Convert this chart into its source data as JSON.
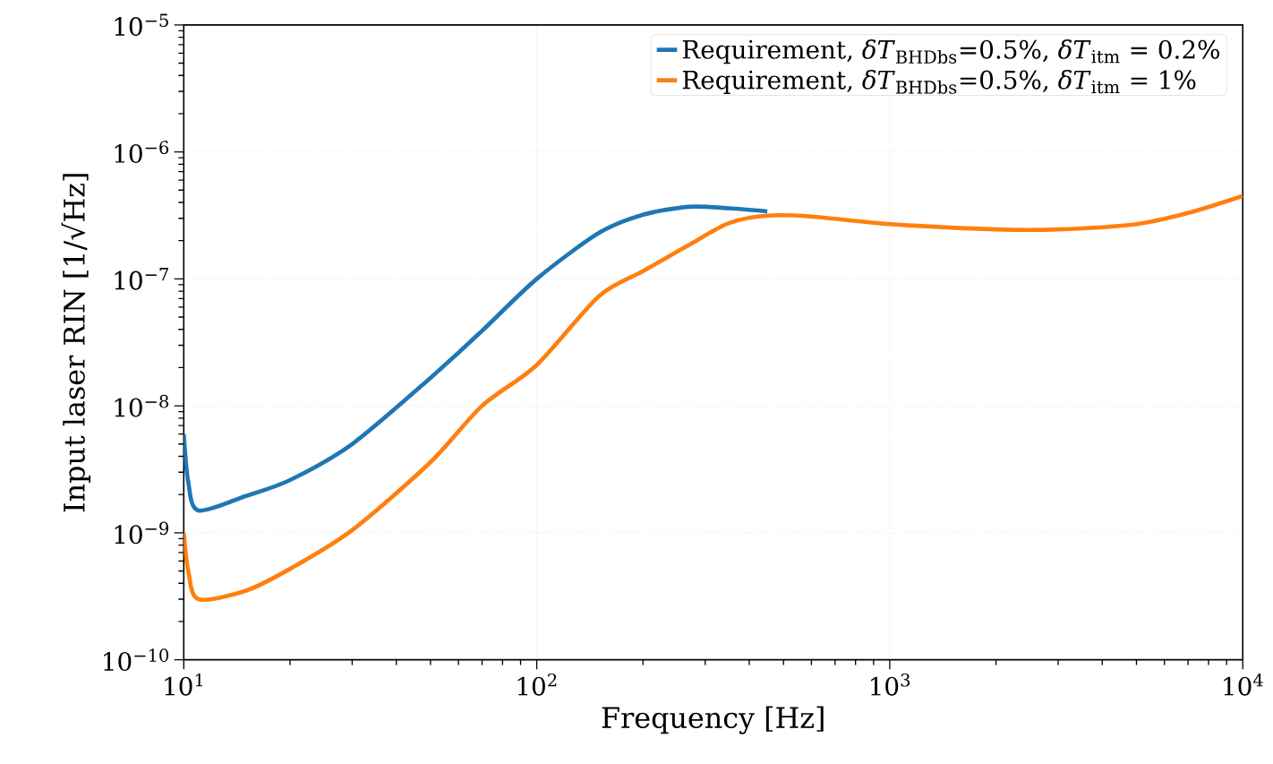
{
  "chart_data": {
    "type": "line",
    "xlabel": "Frequency [Hz]",
    "ylabel": "Input laser RIN [1/√Hz]",
    "log": "xy",
    "grid": true,
    "legend": "top right",
    "line_style": "solid",
    "marker": "none",
    "xlim": [
      10,
      10000
    ],
    "ylim": [
      1e-10,
      1e-05
    ],
    "xticks": [
      {
        "value": 10,
        "label": "10$^{1}$"
      },
      {
        "value": 100,
        "label": "10$^{2}$"
      },
      {
        "value": 1000,
        "label": "10$^{3}$"
      },
      {
        "value": 10000,
        "label": "10$^{4}$"
      }
    ],
    "yticks": [
      {
        "value": 1e-10,
        "label": "10$^{−10}$"
      },
      {
        "value": 1e-09,
        "label": "10$^{−9}$"
      },
      {
        "value": 1e-08,
        "label": "10$^{−8}$"
      },
      {
        "value": 1e-07,
        "label": "10$^{−7}$"
      },
      {
        "value": 1e-06,
        "label": "10$^{−6}$"
      },
      {
        "value": 1e-05,
        "label": "10$^{−5}$"
      }
    ],
    "x": [
      10,
      10.3,
      11,
      15,
      20,
      30,
      50,
      70,
      100,
      150,
      200,
      270,
      350,
      450,
      600,
      1000,
      2000,
      3000,
      5000,
      7000,
      10000
    ],
    "series": [
      {
        "name": "Requirement, *δT*$_{BHDbs}$=0.5%, *δT*$_{itm}$ = 0.2%",
        "color": "#1f77b4",
        "values": [
          6e-09,
          2.5e-09,
          1.5e-09,
          1.95e-09,
          2.6e-09,
          5e-09,
          1.66e-08,
          3.9e-08,
          1e-07,
          2.3e-07,
          3.2e-07,
          3.7e-07,
          3.6e-07,
          3.4e-07,
          null,
          null,
          null,
          null,
          null,
          null,
          null
        ]
      },
      {
        "name": "Requirement, *δT*$_{BHDbs}$=0.5%, *δT*$_{itm}$ = 1%",
        "color": "#ff7f0e",
        "values": [
          1e-09,
          5e-10,
          3e-10,
          3.5e-10,
          5.2e-10,
          1.05e-09,
          3.6e-09,
          1e-08,
          2.1e-08,
          7.3e-08,
          1.15e-07,
          1.85e-07,
          2.75e-07,
          3.15e-07,
          3.1e-07,
          2.7e-07,
          2.45e-07,
          2.45e-07,
          2.7e-07,
          3.3e-07,
          4.5e-07
        ]
      }
    ]
  }
}
